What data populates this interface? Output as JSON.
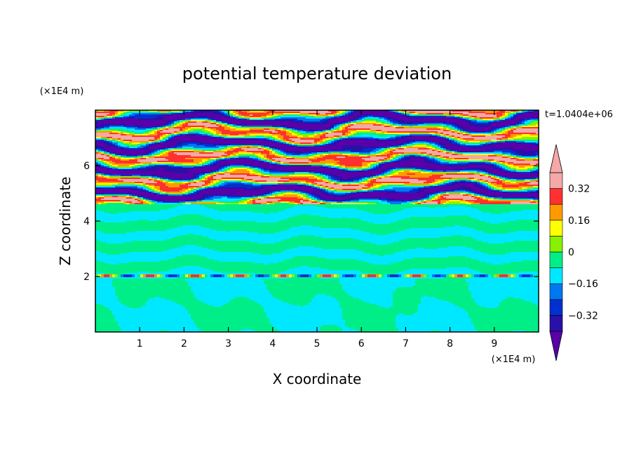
{
  "chart_data": {
    "type": "heatmap",
    "title": "potential temperature deviation",
    "xlabel": "X coordinate",
    "ylabel": "Z coordinate",
    "x_unit": "(×1E4 m)",
    "y_unit": "(×1E4 m)",
    "time_label": "t=1.0404e+06",
    "xlim": [
      0,
      10
    ],
    "ylim": [
      0,
      8
    ],
    "x_ticks": [
      1,
      2,
      3,
      4,
      5,
      6,
      7,
      8,
      9
    ],
    "y_ticks": [
      2,
      4,
      6
    ],
    "x_tick_labels": [
      "1",
      "2",
      "3",
      "4",
      "5",
      "6",
      "7",
      "8",
      "9"
    ],
    "y_tick_labels": [
      "2",
      "4",
      "6"
    ],
    "colorbar": {
      "levels": [
        -0.4,
        -0.32,
        -0.24,
        -0.16,
        -0.08,
        0,
        0.08,
        0.16,
        0.24,
        0.32,
        0.4
      ],
      "tick_values": [
        -0.32,
        -0.16,
        0,
        0.16,
        0.32
      ],
      "tick_labels": [
        "−0.32",
        "−0.16",
        "0",
        "0.16",
        "0.32"
      ],
      "colors": [
        "#5a00a8",
        "#2a10a8",
        "#0030d0",
        "#0078f0",
        "#00e8ff",
        "#00ee88",
        "#88f000",
        "#ffff00",
        "#ff9a00",
        "#ff3030",
        "#f4a8a8"
      ],
      "extend": "both"
    }
  }
}
